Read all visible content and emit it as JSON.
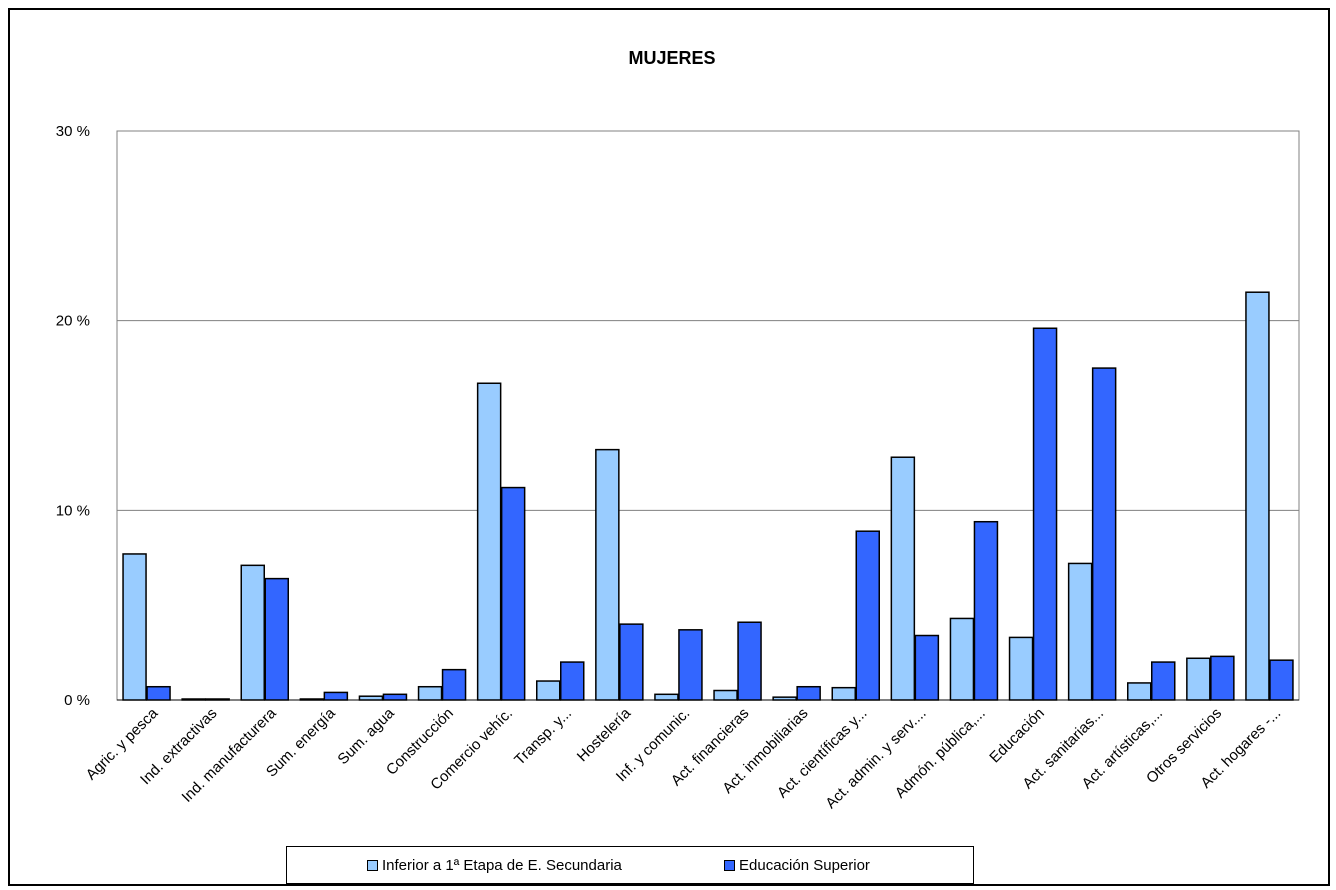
{
  "colors": {
    "series1": "#99CCFF",
    "series2": "#3366FF",
    "grid": "#808080",
    "axis": "#808080"
  },
  "chart_data": {
    "type": "bar",
    "title": "MUJERES",
    "xlabel": "",
    "ylabel": "",
    "ylim": [
      0,
      30
    ],
    "yticks": [
      "0 %",
      "10 %",
      "20 %",
      "30 %"
    ],
    "ytick_values": [
      0,
      10,
      20,
      30
    ],
    "grid": true,
    "legend_position": "bottom",
    "categories": [
      "Agric. y pesca",
      "Ind. extractivas",
      "Ind. manufacturera",
      "Sum. energía",
      "Sum. agua",
      "Construcción",
      "Comercio vehíc.",
      "Transp. y...",
      "Hostelería",
      "Inf. y comunic.",
      "Act. financieras",
      "Act. inmobiliarias",
      "Act. científicas y...",
      "Act. admin. y serv....",
      "Admón. pública,...",
      "Educación",
      "Act. sanitarias...",
      "Act. artísticas,...",
      "Otros servicios",
      "Act. hogares -..."
    ],
    "series": [
      {
        "name": "Inferior a 1ª Etapa de E. Secundaria",
        "values": [
          7.7,
          0.05,
          7.1,
          0.05,
          0.2,
          0.7,
          16.7,
          1.0,
          13.2,
          0.3,
          0.5,
          0.15,
          0.65,
          12.8,
          4.3,
          3.3,
          7.2,
          0.9,
          2.2,
          21.5
        ]
      },
      {
        "name": "Educación Superior",
        "values": [
          0.7,
          0.05,
          6.4,
          0.4,
          0.3,
          1.6,
          11.2,
          2.0,
          4.0,
          3.7,
          4.1,
          0.7,
          8.9,
          3.4,
          9.4,
          19.6,
          17.5,
          2.0,
          2.3,
          2.1
        ]
      }
    ]
  }
}
